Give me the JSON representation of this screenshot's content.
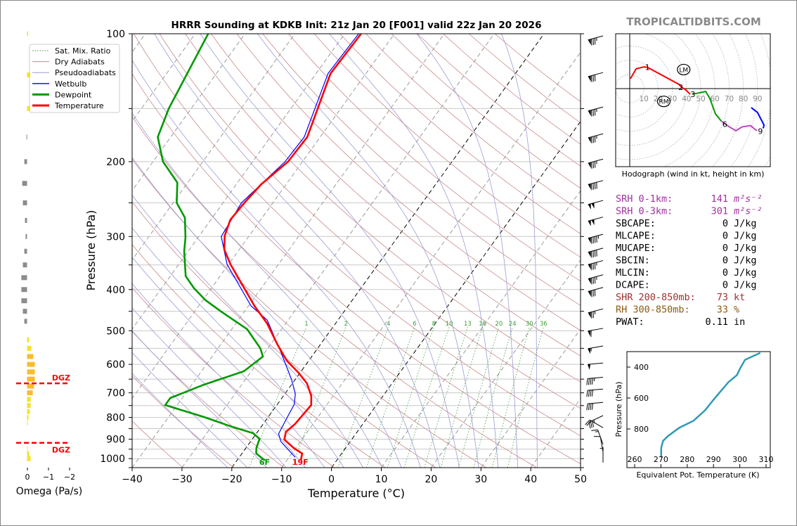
{
  "title": "HRRR Sounding at KDKB Init: 21z Jan 20 [F001] valid 22z Jan 20 2026",
  "watermark": "TROPICALTIDBITS.COM",
  "colors": {
    "temperature": "#ff0000",
    "dewpoint": "#009900",
    "wetbulb": "#0000ff",
    "dry_adiabat": "#c98a8a",
    "pseudoadiabat": "#9b9bd6",
    "mixing_ratio": "#3c9a3c",
    "isobar": "#c8c8c8",
    "isotherm": "#9a9a9a",
    "thetae": "#2e9ab5",
    "srh": "#a030a0",
    "shr": "#a03030",
    "rh": "#8b5a10"
  },
  "legend": {
    "items": [
      {
        "label": "Sat. Mix. Ratio",
        "style": "green-dotted"
      },
      {
        "label": "Dry Adiabats",
        "style": "rose-thin"
      },
      {
        "label": "Pseudoadiabats",
        "style": "lavender-thin"
      },
      {
        "label": "Wetbulb",
        "style": "blue-thin"
      },
      {
        "label": "Dewpoint",
        "style": "green-thick"
      },
      {
        "label": "Temperature",
        "style": "red-thick"
      }
    ]
  },
  "chart_data": [
    {
      "type": "line",
      "name": "skew-t",
      "xlabel": "Temperature (°C)",
      "ylabel": "Pressure (hPa)",
      "xlim": [
        -40,
        50
      ],
      "ylim": [
        1050,
        100
      ],
      "yscale": "log",
      "xticks": [
        -40,
        -30,
        -20,
        -10,
        0,
        10,
        20,
        30,
        40,
        50
      ],
      "yticks": [
        100,
        200,
        300,
        400,
        500,
        600,
        700,
        800,
        900,
        1000
      ],
      "mixing_ratio_labels": [
        1,
        2,
        4,
        6,
        8,
        10,
        13,
        16,
        20,
        24,
        30,
        36
      ],
      "surface_labels": {
        "temperature": "19F",
        "dewpoint": "6F"
      },
      "temperature": {
        "p": [
          1010,
          973,
          944,
          902,
          865,
          829,
          748,
          712,
          665,
          628,
          588,
          539,
          481,
          437,
          349,
          322,
          299,
          274,
          250,
          226,
          200,
          175,
          124,
          100
        ],
        "t": [
          -7.2,
          -7.9,
          -10.4,
          -13.5,
          -14.3,
          -13.6,
          -13.1,
          -14.4,
          -17.1,
          -20.3,
          -24.4,
          -28.6,
          -33.7,
          -38.8,
          -49.6,
          -53.0,
          -54.9,
          -56.1,
          -55.7,
          -55.0,
          -52.9,
          -52.6,
          -57.1,
          -56.7
        ]
      },
      "dewpoint": {
        "p": [
          1010,
          973,
          944,
          898,
          871,
          841,
          798,
          748,
          720,
          670,
          623,
          575,
          550,
          496,
          451,
          424,
          397,
          372,
          325,
          302,
          271,
          250,
          224,
          200,
          175,
          150,
          100
        ],
        "t": [
          -14.4,
          -17.1,
          -17.9,
          -18.6,
          -20.7,
          -25.9,
          -32.9,
          -42.4,
          -42.4,
          -37.6,
          -31.5,
          -29.8,
          -31.5,
          -36.9,
          -44.6,
          -49.4,
          -53.5,
          -56.9,
          -60.8,
          -62.5,
          -65.5,
          -69.3,
          -72.1,
          -78.0,
          -82.6,
          -84.5,
          -87.4
        ]
      },
      "wetbulb": {
        "p": [
          992,
          912,
          874,
          804,
          745,
          704,
          652,
          566,
          472,
          437,
          349,
          300,
          250,
          200,
          175,
          124,
          100
        ],
        "t": [
          -8.8,
          -13.9,
          -15.5,
          -16.1,
          -16.6,
          -17.9,
          -20.7,
          -26.5,
          -34.2,
          -39.5,
          -50.3,
          -55.5,
          -56.3,
          -53.5,
          -53.2,
          -57.6,
          -57.2
        ]
      },
      "wind_barbs": [
        {
          "p": 100,
          "kt": 85,
          "dir": 285
        },
        {
          "p": 122,
          "kt": 80,
          "dir": 285
        },
        {
          "p": 147,
          "kt": 85,
          "dir": 285
        },
        {
          "p": 170,
          "kt": 85,
          "dir": 285
        },
        {
          "p": 195,
          "kt": 85,
          "dir": 285
        },
        {
          "p": 219,
          "kt": 90,
          "dir": 285
        },
        {
          "p": 244,
          "kt": 100,
          "dir": 285
        },
        {
          "p": 267,
          "kt": 100,
          "dir": 285
        },
        {
          "p": 293,
          "kt": 95,
          "dir": 285
        },
        {
          "p": 316,
          "kt": 90,
          "dir": 285
        },
        {
          "p": 338,
          "kt": 85,
          "dir": 285
        },
        {
          "p": 365,
          "kt": 85,
          "dir": 285
        },
        {
          "p": 391,
          "kt": 80,
          "dir": 285
        },
        {
          "p": 439,
          "kt": 75,
          "dir": 285
        },
        {
          "p": 488,
          "kt": 60,
          "dir": 280
        },
        {
          "p": 537,
          "kt": 55,
          "dir": 280
        },
        {
          "p": 589,
          "kt": 50,
          "dir": 275
        },
        {
          "p": 636,
          "kt": 45,
          "dir": 275
        },
        {
          "p": 678,
          "kt": 40,
          "dir": 275
        },
        {
          "p": 729,
          "kt": 40,
          "dir": 275
        },
        {
          "p": 783,
          "kt": 35,
          "dir": 295
        },
        {
          "p": 836,
          "kt": 20,
          "dir": 240
        },
        {
          "p": 915,
          "kt": 15,
          "dir": 200
        },
        {
          "p": 953,
          "kt": 10,
          "dir": 190
        },
        {
          "p": 1010,
          "kt": 5,
          "dir": 180
        }
      ]
    },
    {
      "type": "bar",
      "name": "omega",
      "xlabel": "Omega (Pa/s)",
      "xticks": [
        0,
        -1,
        -2
      ],
      "p": [
        100,
        125,
        150,
        175,
        200,
        225,
        250,
        275,
        300,
        325,
        350,
        375,
        400,
        425,
        450,
        475,
        525,
        550,
        575,
        600,
        625,
        650,
        675,
        700,
        725,
        750,
        775,
        800,
        825,
        950,
        975,
        1000
      ],
      "omega": [
        -0.05,
        -0.15,
        -0.15,
        0.03,
        0.13,
        0.23,
        0.2,
        0.1,
        0.07,
        0.13,
        0.2,
        0.27,
        0.27,
        0.27,
        0.2,
        0.13,
        -0.1,
        -0.2,
        -0.3,
        -0.37,
        -0.37,
        -0.37,
        -0.33,
        -0.27,
        -0.17,
        -0.17,
        -0.13,
        -0.07,
        -0.03,
        -0.03,
        -0.1,
        -0.17
      ],
      "dgz": {
        "label": "DGZ",
        "p": [
          665,
          918
        ]
      }
    },
    {
      "type": "line",
      "name": "hodograph",
      "caption": "Hodograph (wind in kt, height in km)",
      "ring_labels": [
        10,
        20,
        30,
        40,
        50,
        60,
        70,
        80,
        90
      ],
      "segments": [
        {
          "color": "#ff0000",
          "u": [
            0.5,
            4.5,
            9.9,
            12.5,
            34.7,
            36.6,
            39.6,
            42.6
          ],
          "v": [
            7,
            13.9,
            15.3,
            15,
            3,
            1,
            -1,
            -4
          ]
        },
        {
          "color": "#009900",
          "u": [
            44,
            46.5,
            53.5,
            56.4,
            60.4,
            64.4
          ],
          "v": [
            -3.8,
            -3.5,
            -2,
            -6.9,
            -17.8,
            -22.8
          ]
        },
        {
          "color": "#c040c0",
          "u": [
            64.4,
            69.8,
            74.8,
            79,
            85,
            89.6
          ],
          "v": [
            -22.8,
            -26.7,
            -29.7,
            -27,
            -26,
            -29.7
          ]
        },
        {
          "color": "#0000ff",
          "u": [
            85.6,
            90,
            94.6,
            94
          ],
          "v": [
            -13.4,
            -16.8,
            -25.7,
            -28
          ]
        }
      ],
      "height_labels": [
        {
          "km": "1",
          "u": 12.5,
          "v": 15
        },
        {
          "km": "2",
          "u": 36,
          "v": 1
        },
        {
          "km": "3",
          "u": 44.5,
          "v": -4
        },
        {
          "km": "6",
          "u": 67,
          "v": -25
        },
        {
          "km": "9",
          "u": 92,
          "v": -30
        }
      ],
      "storm_motion": [
        {
          "label": "LM",
          "u": 38,
          "v": 13.4
        },
        {
          "label": "RM",
          "u": 24,
          "v": -9
        }
      ]
    },
    {
      "type": "line",
      "name": "theta-e",
      "xlabel": "Equivalent Pot. Temperature (K)",
      "ylabel": "Pressure (hPa)",
      "xlim": [
        257,
        312
      ],
      "ylim": [
        1050,
        300
      ],
      "xticks": [
        260,
        270,
        280,
        290,
        300,
        310
      ],
      "yticks": [
        400,
        600,
        800
      ],
      "p": [
        308,
        353,
        406,
        452,
        497,
        603,
        679,
        747,
        792,
        847,
        877,
        922,
        983
      ],
      "thetae": [
        307.8,
        302,
        300.2,
        298.9,
        295.7,
        290.4,
        286.8,
        282.4,
        277,
        272.6,
        270.8,
        270.1,
        270.1
      ]
    }
  ],
  "stats": [
    {
      "label": "SRH 0-1km:",
      "value": "141",
      "unit": "m²s⁻²",
      "color": "srh"
    },
    {
      "label": "SRH 0-3km:",
      "value": "301",
      "unit": "m²s⁻²",
      "color": "srh"
    },
    {
      "label": "SBCAPE:",
      "value": "0",
      "unit": "J/kg",
      "color": "black"
    },
    {
      "label": "MLCAPE:",
      "value": "0",
      "unit": "J/kg",
      "color": "black"
    },
    {
      "label": "MUCAPE:",
      "value": "0",
      "unit": "J/kg",
      "color": "black"
    },
    {
      "label": "SBCIN:",
      "value": "0",
      "unit": "J/kg",
      "color": "black"
    },
    {
      "label": "MLCIN:",
      "value": "0",
      "unit": "J/kg",
      "color": "black"
    },
    {
      "label": "DCAPE:",
      "value": "0",
      "unit": "J/kg",
      "color": "black"
    },
    {
      "label": "SHR 200-850mb:",
      "value": "73",
      "unit": "kt",
      "color": "shr"
    },
    {
      "label": "RH 300-850mb:",
      "value": "33",
      "unit": "%",
      "color": "rh"
    },
    {
      "label": "PWAT:",
      "value": "0.11",
      "unit": "in",
      "color": "black"
    }
  ]
}
